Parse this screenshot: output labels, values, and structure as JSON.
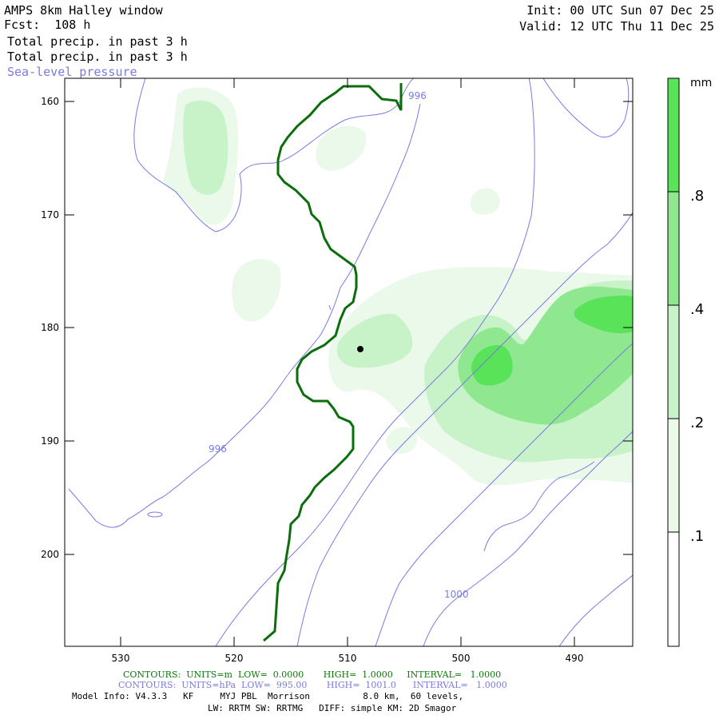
{
  "header": {
    "left_line1": "AMPS 8km Halley window",
    "left_line2": "Fcst:  108 h",
    "left_line3": "Total precip. in past 3 h",
    "left_line4": "Total precip. in past 3 h",
    "left_line5": "Sea-level pressure",
    "right_line1": "Init: 00 UTC Sun 07 Dec 25",
    "right_line2": "Valid: 12 UTC Thu 11 Dec 25"
  },
  "colors": {
    "precip_level1": "#eaf9ea",
    "precip_level2": "#c8f2c8",
    "precip_level3": "#8fe88f",
    "precip_level4": "#59e359",
    "terrain_contour": "#0a6e0a",
    "pressure_contour": "#7a7ae0",
    "text_green": "#0a7a0a",
    "text_blue": "#7a7ae0"
  },
  "map": {
    "x_ticks": [
      "530",
      "520",
      "510",
      "500",
      "490"
    ],
    "y_ticks": [
      "160",
      "170",
      "180",
      "190",
      "200"
    ],
    "pressure_labels": [
      "996",
      "996",
      "1000"
    ]
  },
  "colorbar": {
    "unit": "mm",
    "labels": [
      ".8",
      ".4",
      ".2",
      ".1"
    ]
  },
  "footer": {
    "green_contours": "CONTOURS:  UNITS=m  LOW=  0.0000       HIGH=  1.0000     INTERVAL=   1.0000",
    "blue_contours": "CONTOURS:  UNITS=hPa  LOW=  995.00       HIGH=  1001.0      INTERVAL=   1.0000",
    "model_info": "Model Info: V4.3.3   KF     MYJ PBL  Morrison          8.0 km,  60 levels,",
    "physics": "LW: RRTM SW: RRTMG   DIFF: simple KM: 2D Smagor"
  }
}
